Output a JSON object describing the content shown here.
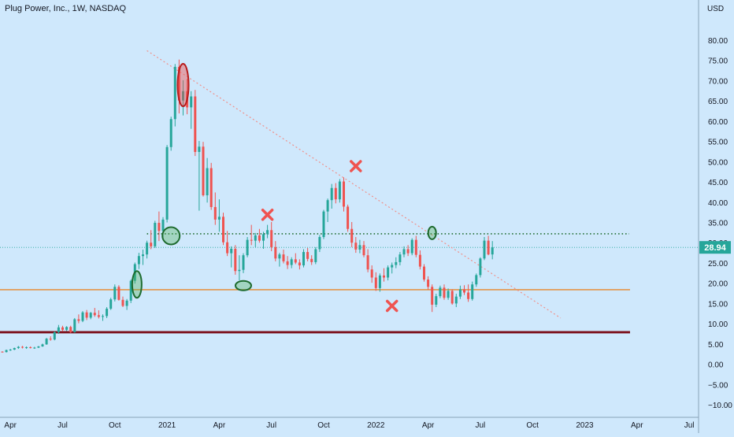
{
  "header": {
    "title": "Plug Power, Inc., 1W, NASDAQ"
  },
  "chart_data": {
    "type": "candlestick",
    "title": "Plug Power, Inc., 1W, NASDAQ",
    "currency_label": "USD",
    "ylim": [
      -13,
      90
    ],
    "y_ticks": [
      80,
      75,
      70,
      65,
      60,
      55,
      50,
      45,
      40,
      35,
      30,
      25,
      20,
      15,
      10,
      5,
      0,
      -5,
      -10
    ],
    "y_tick_labels": [
      "80.00",
      "75.00",
      "70.00",
      "65.00",
      "60.00",
      "55.00",
      "50.00",
      "45.00",
      "40.00",
      "35.00",
      "30.00",
      "25.00",
      "20.00",
      "15.00",
      "10.00",
      "5.00",
      "0.00",
      "−5.00",
      "−10.00"
    ],
    "x_ticks": [
      {
        "label": "Apr",
        "week": 2
      },
      {
        "label": "Jul",
        "week": 15
      },
      {
        "label": "Oct",
        "week": 28
      },
      {
        "label": "2021",
        "week": 41
      },
      {
        "label": "Apr",
        "week": 54
      },
      {
        "label": "Jul",
        "week": 67
      },
      {
        "label": "Oct",
        "week": 80
      },
      {
        "label": "2022",
        "week": 93
      },
      {
        "label": "Apr",
        "week": 106
      },
      {
        "label": "Jul",
        "week": 119
      },
      {
        "label": "Oct",
        "week": 132
      },
      {
        "label": "2023",
        "week": 145
      },
      {
        "label": "Apr",
        "week": 158
      },
      {
        "label": "Jul",
        "week": 171
      }
    ],
    "last_price": 28.94,
    "last_price_label": "28.94",
    "colors": {
      "up": "#26a69a",
      "down": "#ef5350",
      "background": "#cfe8fc",
      "grid": "#bcd9ee",
      "support": "#e8862a",
      "major_support": "#7b0f1a",
      "resistance": "#1e6b2e",
      "trendline": "#f0908a",
      "marker_x": "#ef5350",
      "circle_green": "#4caf50",
      "circle_red": "#b71c1c"
    },
    "horizontal_lines": [
      {
        "name": "support-orange",
        "price": 18.5,
        "style": "solid"
      },
      {
        "name": "support-dark-red",
        "price": 8.0,
        "style": "solid"
      },
      {
        "name": "resistance-dotted",
        "price": 32.3,
        "style": "dotted",
        "from_week": 36
      }
    ],
    "trendline": {
      "from": {
        "week": 36,
        "price": 77.5
      },
      "to": {
        "week": 139,
        "price": 11.5
      }
    },
    "x_markers": [
      {
        "week": 66,
        "price": 37.0
      },
      {
        "week": 88,
        "price": 49.0
      },
      {
        "week": 97,
        "price": 14.5
      }
    ],
    "circle_markers": [
      {
        "week": 33.5,
        "price": 19.8,
        "type": "green"
      },
      {
        "week": 42,
        "price": 31.8,
        "type": "green"
      },
      {
        "week": 60,
        "price": 19.5,
        "type": "green"
      },
      {
        "week": 107,
        "price": 32.5,
        "type": "green"
      },
      {
        "week": 45,
        "price": 69.0,
        "type": "red"
      }
    ],
    "candles": [
      [
        3.2,
        3.3,
        3.0,
        3.1
      ],
      [
        3.1,
        3.7,
        3.0,
        3.6
      ],
      [
        3.6,
        3.9,
        3.4,
        3.7
      ],
      [
        3.7,
        4.2,
        3.6,
        4.1
      ],
      [
        4.1,
        4.6,
        3.9,
        4.4
      ],
      [
        4.4,
        4.6,
        4.0,
        4.2
      ],
      [
        4.2,
        4.5,
        3.9,
        4.3
      ],
      [
        4.3,
        4.5,
        4.0,
        4.1
      ],
      [
        4.1,
        4.4,
        3.9,
        4.2
      ],
      [
        4.2,
        4.6,
        4.1,
        4.5
      ],
      [
        4.5,
        5.2,
        4.4,
        5.0
      ],
      [
        5.0,
        6.6,
        4.9,
        6.4
      ],
      [
        6.4,
        7.0,
        5.9,
        6.2
      ],
      [
        6.2,
        8.2,
        6.0,
        8.0
      ],
      [
        8.0,
        9.8,
        7.6,
        9.2
      ],
      [
        9.2,
        9.6,
        8.2,
        8.6
      ],
      [
        8.6,
        9.5,
        8.3,
        9.3
      ],
      [
        9.3,
        9.6,
        7.8,
        8.0
      ],
      [
        8.0,
        11.5,
        7.9,
        11.2
      ],
      [
        11.2,
        12.4,
        10.2,
        10.8
      ],
      [
        10.8,
        13.2,
        10.5,
        12.9
      ],
      [
        12.9,
        13.5,
        11.0,
        11.6
      ],
      [
        11.6,
        13.0,
        11.2,
        12.8
      ],
      [
        12.8,
        14.0,
        11.8,
        12.2
      ],
      [
        12.2,
        13.4,
        11.4,
        11.8
      ],
      [
        11.8,
        12.4,
        10.8,
        12.0
      ],
      [
        12.0,
        14.2,
        11.5,
        13.8
      ],
      [
        13.8,
        16.5,
        13.5,
        16.1
      ],
      [
        16.1,
        19.8,
        15.6,
        19.2
      ],
      [
        19.2,
        19.6,
        15.8,
        16.0
      ],
      [
        16.0,
        16.8,
        14.2,
        14.5
      ],
      [
        14.5,
        16.2,
        13.5,
        15.8
      ],
      [
        15.8,
        21.0,
        15.2,
        20.7
      ],
      [
        20.7,
        25.2,
        20.0,
        24.8
      ],
      [
        24.8,
        27.6,
        23.6,
        26.8
      ],
      [
        26.8,
        28.4,
        24.6,
        27.2
      ],
      [
        27.2,
        30.6,
        26.2,
        30.1
      ],
      [
        30.1,
        33.2,
        28.5,
        29.2
      ],
      [
        29.2,
        35.5,
        28.8,
        35.0
      ],
      [
        35.0,
        37.8,
        30.5,
        33.0
      ],
      [
        33.0,
        36.4,
        31.2,
        35.8
      ],
      [
        35.8,
        54.2,
        35.1,
        53.7
      ],
      [
        53.7,
        61.2,
        52.8,
        60.6
      ],
      [
        60.6,
        74.2,
        58.8,
        73.5
      ],
      [
        73.5,
        75.3,
        62.0,
        65.2
      ],
      [
        65.2,
        70.2,
        61.5,
        67.5
      ],
      [
        67.5,
        70.5,
        61.8,
        63.5
      ],
      [
        63.5,
        67.5,
        58.2,
        66.2
      ],
      [
        66.2,
        67.8,
        51.5,
        52.5
      ],
      [
        52.5,
        55.2,
        38.0,
        53.8
      ],
      [
        53.8,
        55.0,
        41.5,
        41.8
      ],
      [
        41.8,
        51.0,
        40.0,
        48.5
      ],
      [
        48.5,
        49.8,
        38.2,
        38.9
      ],
      [
        38.9,
        42.5,
        34.5,
        35.8
      ],
      [
        35.8,
        40.8,
        32.8,
        36.5
      ],
      [
        36.5,
        37.5,
        29.5,
        30.2
      ],
      [
        30.2,
        33.0,
        26.8,
        27.5
      ],
      [
        27.5,
        29.2,
        24.0,
        28.6
      ],
      [
        28.6,
        29.5,
        22.2,
        23.1
      ],
      [
        23.1,
        27.0,
        20.8,
        23.4
      ],
      [
        23.4,
        27.5,
        22.6,
        27.0
      ],
      [
        27.0,
        31.5,
        26.5,
        30.8
      ],
      [
        30.8,
        34.5,
        29.5,
        30.6
      ],
      [
        30.6,
        32.5,
        29.0,
        31.9
      ],
      [
        31.9,
        33.5,
        30.1,
        30.6
      ],
      [
        30.6,
        32.8,
        28.6,
        32.2
      ],
      [
        32.2,
        34.5,
        31.2,
        33.2
      ],
      [
        33.2,
        35.2,
        28.0,
        29.0
      ],
      [
        29.0,
        30.5,
        25.5,
        26.2
      ],
      [
        26.2,
        27.6,
        24.2,
        27.2
      ],
      [
        27.2,
        28.4,
        25.0,
        25.5
      ],
      [
        25.5,
        26.8,
        23.6,
        24.6
      ],
      [
        24.6,
        26.5,
        23.8,
        26.0
      ],
      [
        26.0,
        27.5,
        24.8,
        25.2
      ],
      [
        25.2,
        26.0,
        23.5,
        24.5
      ],
      [
        24.5,
        28.5,
        24.0,
        27.8
      ],
      [
        27.8,
        28.8,
        25.5,
        26.1
      ],
      [
        26.1,
        27.0,
        24.6,
        25.3
      ],
      [
        25.3,
        29.0,
        24.8,
        28.5
      ],
      [
        28.5,
        32.0,
        27.8,
        31.5
      ],
      [
        31.5,
        38.2,
        31.0,
        37.8
      ],
      [
        37.8,
        41.0,
        35.2,
        40.6
      ],
      [
        40.6,
        44.6,
        38.5,
        43.6
      ],
      [
        43.6,
        44.8,
        39.8,
        40.8
      ],
      [
        40.8,
        45.8,
        40.0,
        45.2
      ],
      [
        45.2,
        46.2,
        37.8,
        39.0
      ],
      [
        39.0,
        39.5,
        32.8,
        33.5
      ],
      [
        33.5,
        35.2,
        29.0,
        30.1
      ],
      [
        30.1,
        31.5,
        27.6,
        28.4
      ],
      [
        28.4,
        30.8,
        27.5,
        29.5
      ],
      [
        29.5,
        30.5,
        26.5,
        27.0
      ],
      [
        27.0,
        28.5,
        22.8,
        23.5
      ],
      [
        23.5,
        24.5,
        20.2,
        21.5
      ],
      [
        21.5,
        22.8,
        18.2,
        18.9
      ],
      [
        18.9,
        22.5,
        18.0,
        22.0
      ],
      [
        22.0,
        23.8,
        20.5,
        21.5
      ],
      [
        21.5,
        24.5,
        20.8,
        24.0
      ],
      [
        24.0,
        25.2,
        22.5,
        24.6
      ],
      [
        24.6,
        26.5,
        23.8,
        25.3
      ],
      [
        25.3,
        27.8,
        24.5,
        27.2
      ],
      [
        27.2,
        29.2,
        26.5,
        28.5
      ],
      [
        28.5,
        29.5,
        26.8,
        27.5
      ],
      [
        27.5,
        31.2,
        27.0,
        30.8
      ],
      [
        30.8,
        31.8,
        26.5,
        27.1
      ],
      [
        27.1,
        28.2,
        23.5,
        24.2
      ],
      [
        24.2,
        24.8,
        20.5,
        21.0
      ],
      [
        21.0,
        21.8,
        18.5,
        19.2
      ],
      [
        19.2,
        19.8,
        13.0,
        14.8
      ],
      [
        14.8,
        17.5,
        14.2,
        16.9
      ],
      [
        16.9,
        19.5,
        16.4,
        19.0
      ],
      [
        19.0,
        19.8,
        16.0,
        16.5
      ],
      [
        16.5,
        18.8,
        16.0,
        18.2
      ],
      [
        18.2,
        18.6,
        14.8,
        15.1
      ],
      [
        15.1,
        17.5,
        14.2,
        16.8
      ],
      [
        16.8,
        19.5,
        16.2,
        18.6
      ],
      [
        18.6,
        19.6,
        17.2,
        17.8
      ],
      [
        17.8,
        19.8,
        15.5,
        16.2
      ],
      [
        16.2,
        20.5,
        15.8,
        19.8
      ],
      [
        19.8,
        22.5,
        19.2,
        22.1
      ],
      [
        22.1,
        26.5,
        21.5,
        26.2
      ],
      [
        26.2,
        31.5,
        25.8,
        30.6
      ],
      [
        30.6,
        31.8,
        27.0,
        27.2
      ],
      [
        27.2,
        30.5,
        26.0,
        28.94
      ]
    ]
  }
}
